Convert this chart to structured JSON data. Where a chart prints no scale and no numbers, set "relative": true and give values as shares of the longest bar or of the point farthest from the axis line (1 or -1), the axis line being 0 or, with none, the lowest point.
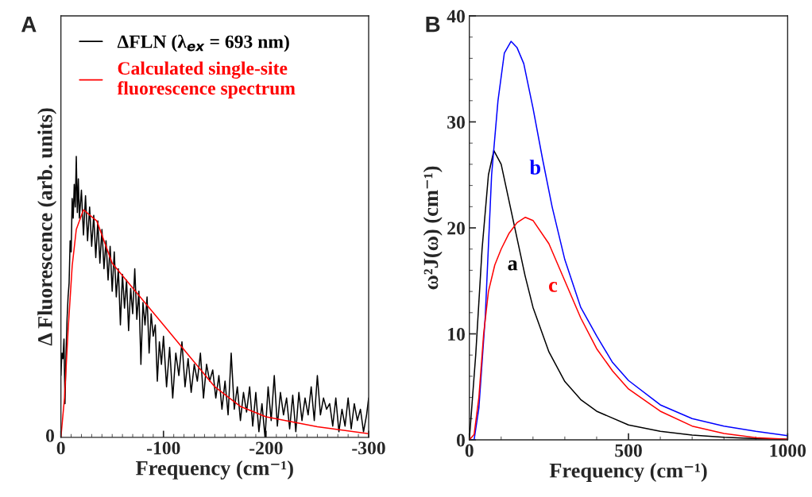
{
  "chart_data": [
    {
      "type": "line",
      "title": "A",
      "xlabel": "Frequency (cm⁻¹)",
      "ylabel": "Δ Fluorescence (arb. units)",
      "relative": true,
      "annotations": [
        "0"
      ],
      "xlim": [
        0,
        -300
      ],
      "xticks": [
        0,
        -100,
        -200,
        -300
      ],
      "legend": "top left",
      "grid": false,
      "series": [
        {
          "name": "ΔFLN (λ$_{ex}$ = 693 nm)",
          "color": "#000000",
          "x": [
            0,
            -1,
            -2,
            -3,
            -4,
            -5,
            -6,
            -7,
            -8,
            -9,
            -10,
            -11,
            -12,
            -13,
            -14,
            -15,
            -16,
            -17,
            -18,
            -20,
            -22,
            -24,
            -26,
            -28,
            -30,
            -32,
            -34,
            -36,
            -38,
            -40,
            -42,
            -44,
            -46,
            -48,
            -50,
            -52,
            -54,
            -56,
            -58,
            -60,
            -62,
            -64,
            -66,
            -68,
            -70,
            -72,
            -74,
            -76,
            -78,
            -80,
            -82,
            -84,
            -86,
            -88,
            -90,
            -92,
            -94,
            -96,
            -98,
            -100,
            -103,
            -106,
            -109,
            -112,
            -115,
            -118,
            -121,
            -124,
            -127,
            -130,
            -133,
            -136,
            -139,
            -142,
            -145,
            -148,
            -151,
            -154,
            -157,
            -160,
            -163,
            -166,
            -169,
            -172,
            -175,
            -178,
            -181,
            -184,
            -187,
            -190,
            -193,
            -196,
            -199,
            -202,
            -205,
            -208,
            -211,
            -214,
            -217,
            -220,
            -223,
            -226,
            -229,
            -232,
            -235,
            -238,
            -241,
            -244,
            -247,
            -250,
            -253,
            -256,
            -259,
            -262,
            -265,
            -268,
            -271,
            -274,
            -277,
            -280,
            -283,
            -286,
            -289,
            -292,
            -295,
            -298,
            -300
          ],
          "values": [
            0.22,
            0.3,
            0.28,
            0.35,
            0.12,
            0.3,
            0.42,
            0.5,
            0.55,
            0.7,
            0.66,
            0.85,
            0.78,
            0.9,
            0.82,
            1.0,
            0.8,
            0.92,
            0.78,
            0.88,
            0.72,
            0.86,
            0.7,
            0.82,
            0.68,
            0.79,
            0.64,
            0.77,
            0.62,
            0.74,
            0.6,
            0.7,
            0.56,
            0.68,
            0.52,
            0.66,
            0.5,
            0.6,
            0.4,
            0.58,
            0.46,
            0.56,
            0.38,
            0.53,
            0.44,
            0.6,
            0.42,
            0.52,
            0.26,
            0.48,
            0.4,
            0.5,
            0.3,
            0.44,
            0.36,
            0.4,
            0.2,
            0.34,
            0.26,
            0.36,
            0.18,
            0.32,
            0.14,
            0.3,
            0.22,
            0.34,
            0.18,
            0.28,
            0.16,
            0.26,
            0.2,
            0.3,
            0.14,
            0.26,
            0.2,
            0.24,
            0.14,
            0.22,
            0.1,
            0.2,
            0.08,
            0.3,
            0.1,
            0.18,
            0.06,
            0.16,
            0.09,
            0.18,
            0.04,
            0.16,
            0.02,
            0.12,
            0.0,
            0.18,
            0.06,
            0.22,
            0.04,
            0.16,
            0.08,
            0.14,
            0.03,
            0.15,
            0.02,
            0.16,
            0.06,
            0.14,
            0.08,
            0.18,
            0.06,
            0.22,
            0.08,
            0.14,
            0.1,
            0.12,
            0.04,
            0.14,
            0.02,
            0.1,
            0.04,
            0.14,
            0.03,
            0.12,
            0.06,
            0.1,
            0.02,
            0.08,
            0.14
          ]
        },
        {
          "name": "Calculated single-site\nfluorescence spectrum",
          "color": "#ff0000",
          "x": [
            0,
            -3.5,
            -7,
            -11,
            -15,
            -22,
            -35,
            -50,
            -75,
            -100,
            -125,
            -150,
            -175,
            -200,
            -250,
            -300
          ],
          "values": [
            0,
            0.14,
            0.38,
            0.61,
            0.74,
            0.81,
            0.77,
            0.62,
            0.51,
            0.4,
            0.29,
            0.18,
            0.11,
            0.073,
            0.038,
            0.013
          ]
        }
      ]
    },
    {
      "type": "line",
      "title": "B",
      "xlabel": "Frequency (cm⁻¹)",
      "ylabel": "ω²J(ω) (cm⁻¹)",
      "xlim": [
        0,
        1000
      ],
      "xticks": [
        0,
        500,
        1000
      ],
      "ylim": [
        0,
        40
      ],
      "yticks": [
        0,
        10,
        20,
        30,
        40
      ],
      "grid": false,
      "annotations": [
        "a",
        "b",
        "c"
      ],
      "series": [
        {
          "color": "#000000",
          "x": [
            0,
            20,
            40,
            60,
            77,
            100,
            125,
            150,
            175,
            200,
            250,
            300,
            350,
            400,
            500,
            600,
            700,
            800,
            900,
            1000
          ],
          "values": [
            0,
            8,
            18,
            25,
            27.3,
            26,
            22.5,
            19,
            15.5,
            12.5,
            8.3,
            5.5,
            3.8,
            2.7,
            1.4,
            0.8,
            0.45,
            0.25,
            0.12,
            0.05
          ]
        },
        {
          "color": "#0000ff",
          "x": [
            0,
            15,
            30,
            50,
            70,
            90,
            110,
            131,
            150,
            171,
            200,
            230,
            260,
            300,
            350,
            400,
            450,
            500,
            600,
            700,
            800,
            900,
            1000
          ],
          "values": [
            0,
            0,
            3,
            11.6,
            25,
            32,
            36.5,
            37.6,
            37,
            35.5,
            31.3,
            26.5,
            22,
            17,
            12.5,
            9.8,
            7.3,
            5.6,
            3.3,
            2.0,
            1.3,
            0.8,
            0.4
          ]
        },
        {
          "color": "#ff0000",
          "x": [
            0,
            15,
            30,
            45,
            60,
            80,
            100,
            125,
            150,
            176,
            200,
            250,
            300,
            350,
            400,
            450,
            500,
            600,
            700,
            800,
            900,
            1000
          ],
          "values": [
            0,
            0.5,
            4,
            10,
            14,
            16.5,
            18,
            19.5,
            20.5,
            21,
            20.7,
            18.5,
            15,
            11.5,
            8.6,
            6.5,
            4.8,
            2.7,
            1.3,
            0.6,
            0.2,
            0.05
          ]
        }
      ]
    }
  ]
}
